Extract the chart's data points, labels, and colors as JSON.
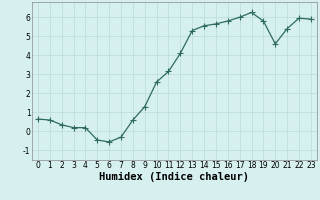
{
  "x": [
    0,
    1,
    2,
    3,
    4,
    5,
    6,
    7,
    8,
    9,
    10,
    11,
    12,
    13,
    14,
    15,
    16,
    17,
    18,
    19,
    20,
    21,
    22,
    23
  ],
  "y": [
    0.65,
    0.6,
    0.35,
    0.2,
    0.2,
    -0.45,
    -0.55,
    -0.3,
    0.6,
    1.3,
    2.6,
    3.15,
    4.1,
    5.3,
    5.55,
    5.65,
    5.8,
    6.0,
    6.25,
    5.8,
    4.6,
    5.4,
    5.95,
    5.9
  ],
  "line_color": "#2e6b5e",
  "marker": "+",
  "marker_size": 4,
  "bg_color": "#d6f0f0",
  "grid_color": "#c0dede",
  "xlabel": "Humidex (Indice chaleur)",
  "xlim": [
    -0.5,
    23.5
  ],
  "ylim": [
    -1.5,
    6.8
  ],
  "yticks": [
    -1,
    0,
    1,
    2,
    3,
    4,
    5,
    6
  ],
  "xticks": [
    0,
    1,
    2,
    3,
    4,
    5,
    6,
    7,
    8,
    9,
    10,
    11,
    12,
    13,
    14,
    15,
    16,
    17,
    18,
    19,
    20,
    21,
    22,
    23
  ],
  "tick_fontsize": 5.5,
  "xlabel_fontsize": 7.5,
  "spine_color": "#888888"
}
